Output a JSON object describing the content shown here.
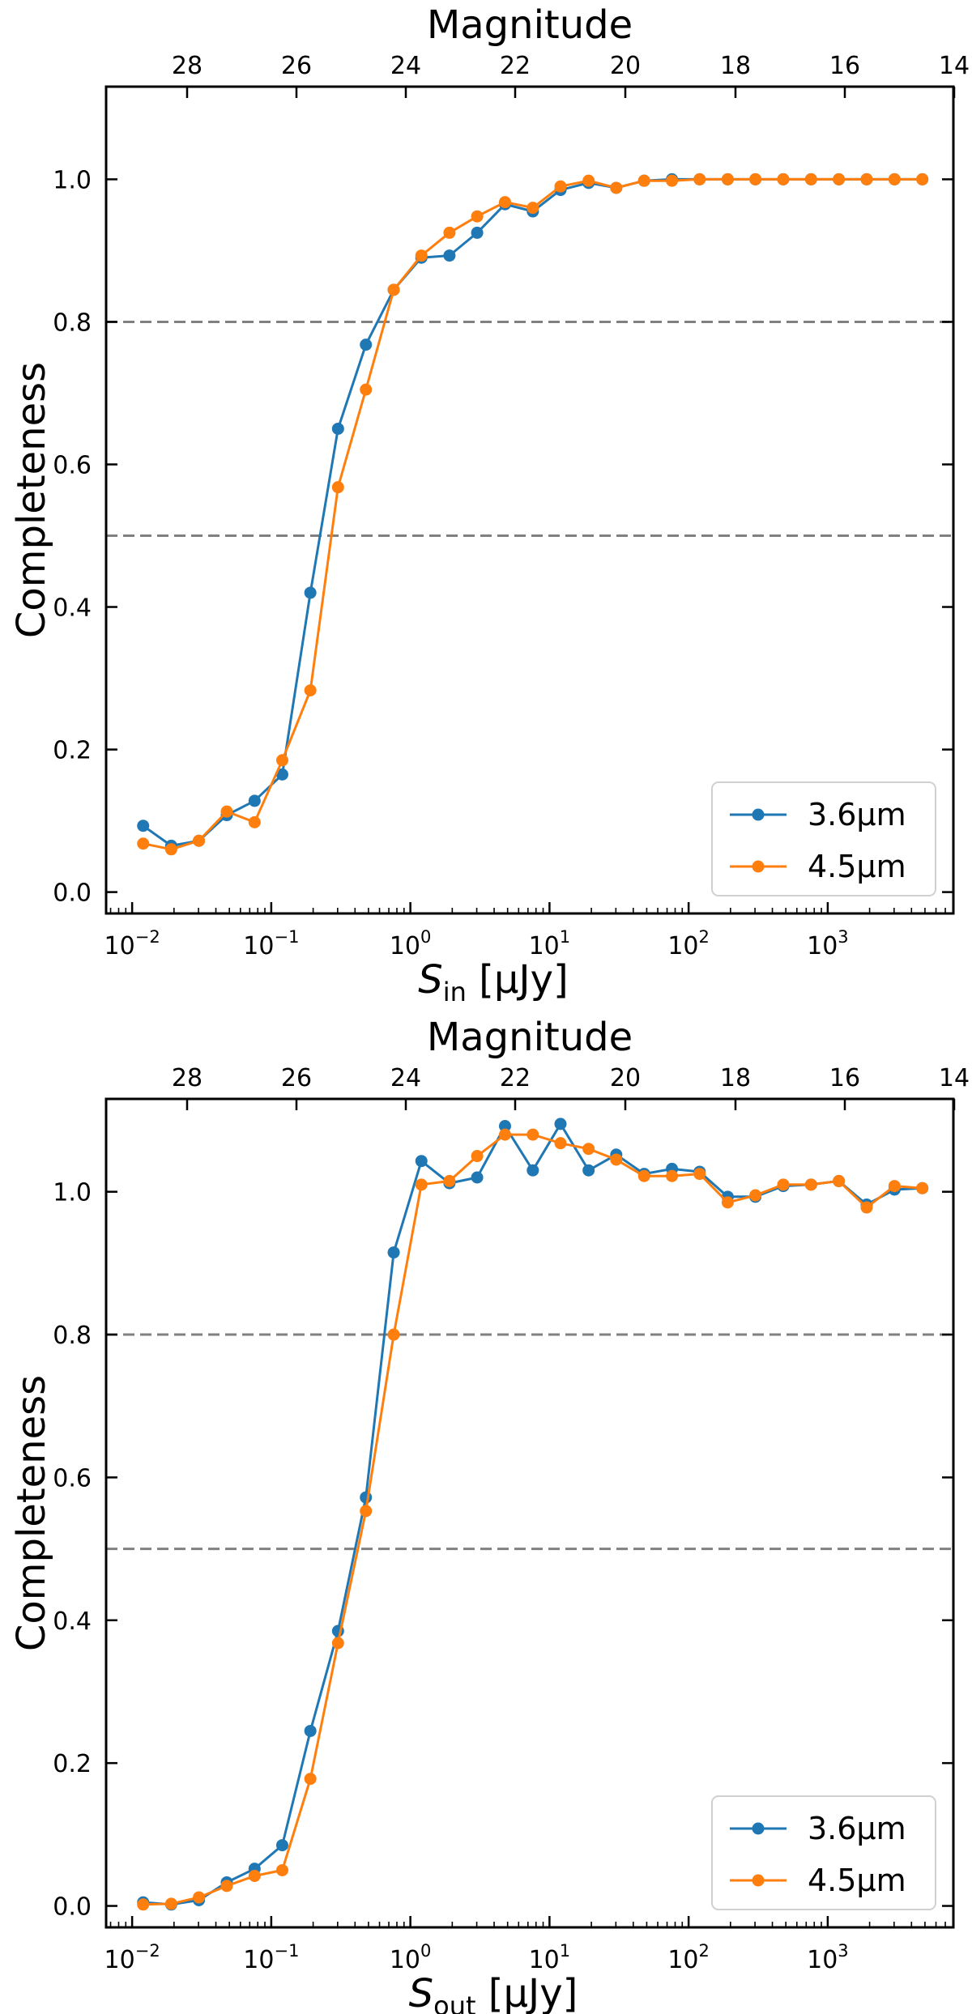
{
  "chart_data": [
    {
      "type": "line",
      "xscale": "log",
      "xlabel_main": "S",
      "xlabel_sub": "in",
      "xlabel_unit": " [μJy]",
      "ylabel": "Completeness",
      "top_xlabel": "Magnitude",
      "xlim": [
        0.0065,
        8000
      ],
      "ylim": [
        -0.03,
        1.13
      ],
      "x_ticks": [
        {
          "value": 0.01,
          "base": "10",
          "exp": "−2"
        },
        {
          "value": 0.1,
          "base": "10",
          "exp": "−1"
        },
        {
          "value": 1,
          "base": "10",
          "exp": "0"
        },
        {
          "value": 10,
          "base": "10",
          "exp": "1"
        },
        {
          "value": 100,
          "base": "10",
          "exp": "2"
        },
        {
          "value": 1000,
          "base": "10",
          "exp": "3"
        }
      ],
      "y_ticks": [
        "0.0",
        "0.2",
        "0.4",
        "0.6",
        "0.8",
        "1.0"
      ],
      "top_ticks": [
        "28",
        "26",
        "24",
        "22",
        "20",
        "18",
        "16",
        "14"
      ],
      "hlines": [
        0.8,
        0.5
      ],
      "legend_position": "bottom-right",
      "series": [
        {
          "name": "3.6μm",
          "color": "#1f77b4",
          "x": [
            0.012,
            0.0191,
            0.0302,
            0.0479,
            0.0759,
            0.12,
            0.191,
            0.302,
            0.479,
            0.759,
            1.2,
            1.91,
            3.02,
            4.79,
            7.59,
            12.0,
            19.1,
            30.2,
            47.9,
            75.9,
            120,
            191,
            302,
            479,
            759,
            1202,
            1905,
            3020,
            4786
          ],
          "values": [
            0.093,
            0.065,
            0.072,
            0.108,
            0.128,
            0.165,
            0.42,
            0.65,
            0.768,
            0.845,
            0.89,
            0.893,
            0.925,
            0.965,
            0.955,
            0.985,
            0.995,
            0.988,
            0.998,
            1.0,
            1.0,
            1.0,
            1.0,
            1.0,
            1.0,
            1.0,
            1.0,
            1.0,
            1.0
          ]
        },
        {
          "name": "4.5μm",
          "color": "#ff7f0e",
          "x": [
            0.012,
            0.0191,
            0.0302,
            0.0479,
            0.0759,
            0.12,
            0.191,
            0.302,
            0.479,
            0.759,
            1.2,
            1.91,
            3.02,
            4.79,
            7.59,
            12.0,
            19.1,
            30.2,
            47.9,
            75.9,
            120,
            191,
            302,
            479,
            759,
            1202,
            1905,
            3020,
            4786
          ],
          "values": [
            0.068,
            0.06,
            0.072,
            0.113,
            0.098,
            0.185,
            0.283,
            0.568,
            0.705,
            0.845,
            0.893,
            0.925,
            0.948,
            0.968,
            0.96,
            0.99,
            0.998,
            0.988,
            0.998,
            0.998,
            1.0,
            1.0,
            1.0,
            1.0,
            1.0,
            1.0,
            1.0,
            1.0,
            1.0
          ]
        }
      ]
    },
    {
      "type": "line",
      "xscale": "log",
      "xlabel_main": "S",
      "xlabel_sub": "out",
      "xlabel_unit": " [μJy]",
      "ylabel": "Completeness",
      "top_xlabel": "Magnitude",
      "xlim": [
        0.0065,
        8000
      ],
      "ylim": [
        -0.03,
        1.13
      ],
      "x_ticks": [
        {
          "value": 0.01,
          "base": "10",
          "exp": "−2"
        },
        {
          "value": 0.1,
          "base": "10",
          "exp": "−1"
        },
        {
          "value": 1,
          "base": "10",
          "exp": "0"
        },
        {
          "value": 10,
          "base": "10",
          "exp": "1"
        },
        {
          "value": 100,
          "base": "10",
          "exp": "2"
        },
        {
          "value": 1000,
          "base": "10",
          "exp": "3"
        }
      ],
      "y_ticks": [
        "0.0",
        "0.2",
        "0.4",
        "0.6",
        "0.8",
        "1.0"
      ],
      "top_ticks": [
        "28",
        "26",
        "24",
        "22",
        "20",
        "18",
        "16",
        "14"
      ],
      "hlines": [
        0.8,
        0.5
      ],
      "legend_position": "bottom-right",
      "series": [
        {
          "name": "3.6μm",
          "color": "#1f77b4",
          "x": [
            0.012,
            0.0191,
            0.0302,
            0.0479,
            0.0759,
            0.12,
            0.191,
            0.302,
            0.479,
            0.759,
            1.2,
            1.91,
            3.02,
            4.79,
            7.59,
            12.0,
            19.1,
            30.2,
            47.9,
            75.9,
            120,
            191,
            302,
            479,
            759,
            1202,
            1905,
            3020,
            4786
          ],
          "values": [
            0.005,
            0.002,
            0.008,
            0.033,
            0.052,
            0.085,
            0.245,
            0.385,
            0.572,
            0.915,
            1.043,
            1.012,
            1.02,
            1.092,
            1.03,
            1.095,
            1.03,
            1.052,
            1.025,
            1.032,
            1.028,
            0.993,
            0.993,
            1.008,
            1.01,
            1.015,
            0.982,
            1.003,
            1.005
          ]
        },
        {
          "name": "4.5μm",
          "color": "#ff7f0e",
          "x": [
            0.012,
            0.0191,
            0.0302,
            0.0479,
            0.0759,
            0.12,
            0.191,
            0.302,
            0.479,
            0.759,
            1.2,
            1.91,
            3.02,
            4.79,
            7.59,
            12.0,
            19.1,
            30.2,
            47.9,
            75.9,
            120,
            191,
            302,
            479,
            759,
            1202,
            1905,
            3020,
            4786
          ],
          "values": [
            0.002,
            0.003,
            0.012,
            0.028,
            0.042,
            0.05,
            0.178,
            0.368,
            0.553,
            0.8,
            1.01,
            1.015,
            1.05,
            1.08,
            1.08,
            1.068,
            1.06,
            1.045,
            1.022,
            1.022,
            1.025,
            0.985,
            0.995,
            1.01,
            1.01,
            1.015,
            0.978,
            1.008,
            1.005
          ]
        }
      ]
    }
  ]
}
